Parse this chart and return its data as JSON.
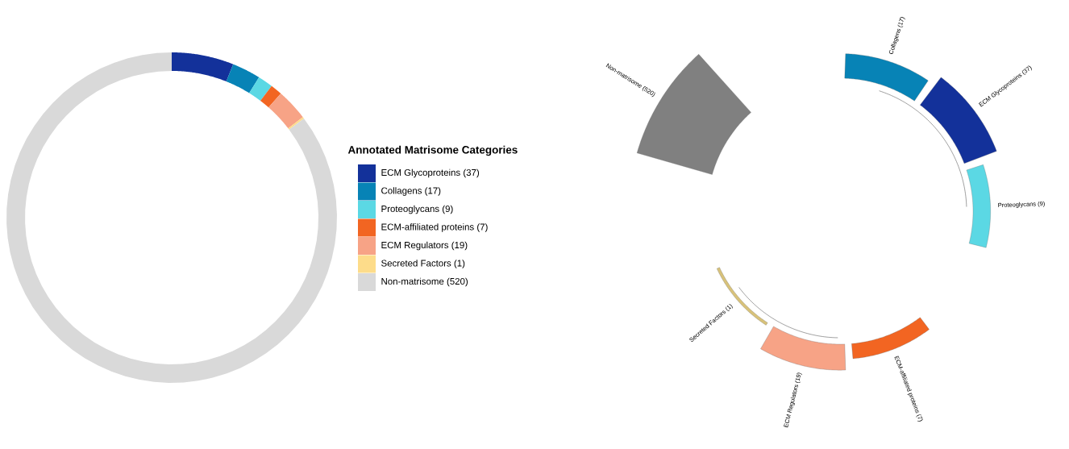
{
  "chart_data": [
    {
      "type": "donut",
      "legend_title": "Annotated Matrisome Categories",
      "legend": "right",
      "categories": [
        "ECM Glycoproteins (37)",
        "Collagens (17)",
        "Proteoglycans (9)",
        "ECM-affiliated proteins (7)",
        "ECM Regulators (19)",
        "Secreted Factors (1)",
        "Non-matrisome (520)"
      ],
      "values": [
        37,
        17,
        9,
        7,
        19,
        1,
        520
      ],
      "colors": [
        "#13319a",
        "#0783b6",
        "#5bd8e4",
        "#f26522",
        "#f7a386",
        "#fddc8a",
        "#d9d9d9"
      ]
    },
    {
      "type": "other",
      "categories": [
        "Collagens",
        "ECM Glycoproteins",
        "Proteoglycans",
        "ECM-affiliated proteins",
        "ECM Regulators",
        "Secreted Factors",
        "Non-matrisome"
      ],
      "values": [
        17,
        37,
        9,
        7,
        19,
        1,
        520
      ],
      "value_labels": [
        "(17)",
        "(37)",
        "(9)",
        "(7)",
        "(19)",
        "(1)",
        "(520)"
      ],
      "colors": [
        "#0783b6",
        "#13319a",
        "#5bd8e4",
        "#f26522",
        "#f7a386",
        "#d8c27a",
        "#808080"
      ]
    }
  ]
}
